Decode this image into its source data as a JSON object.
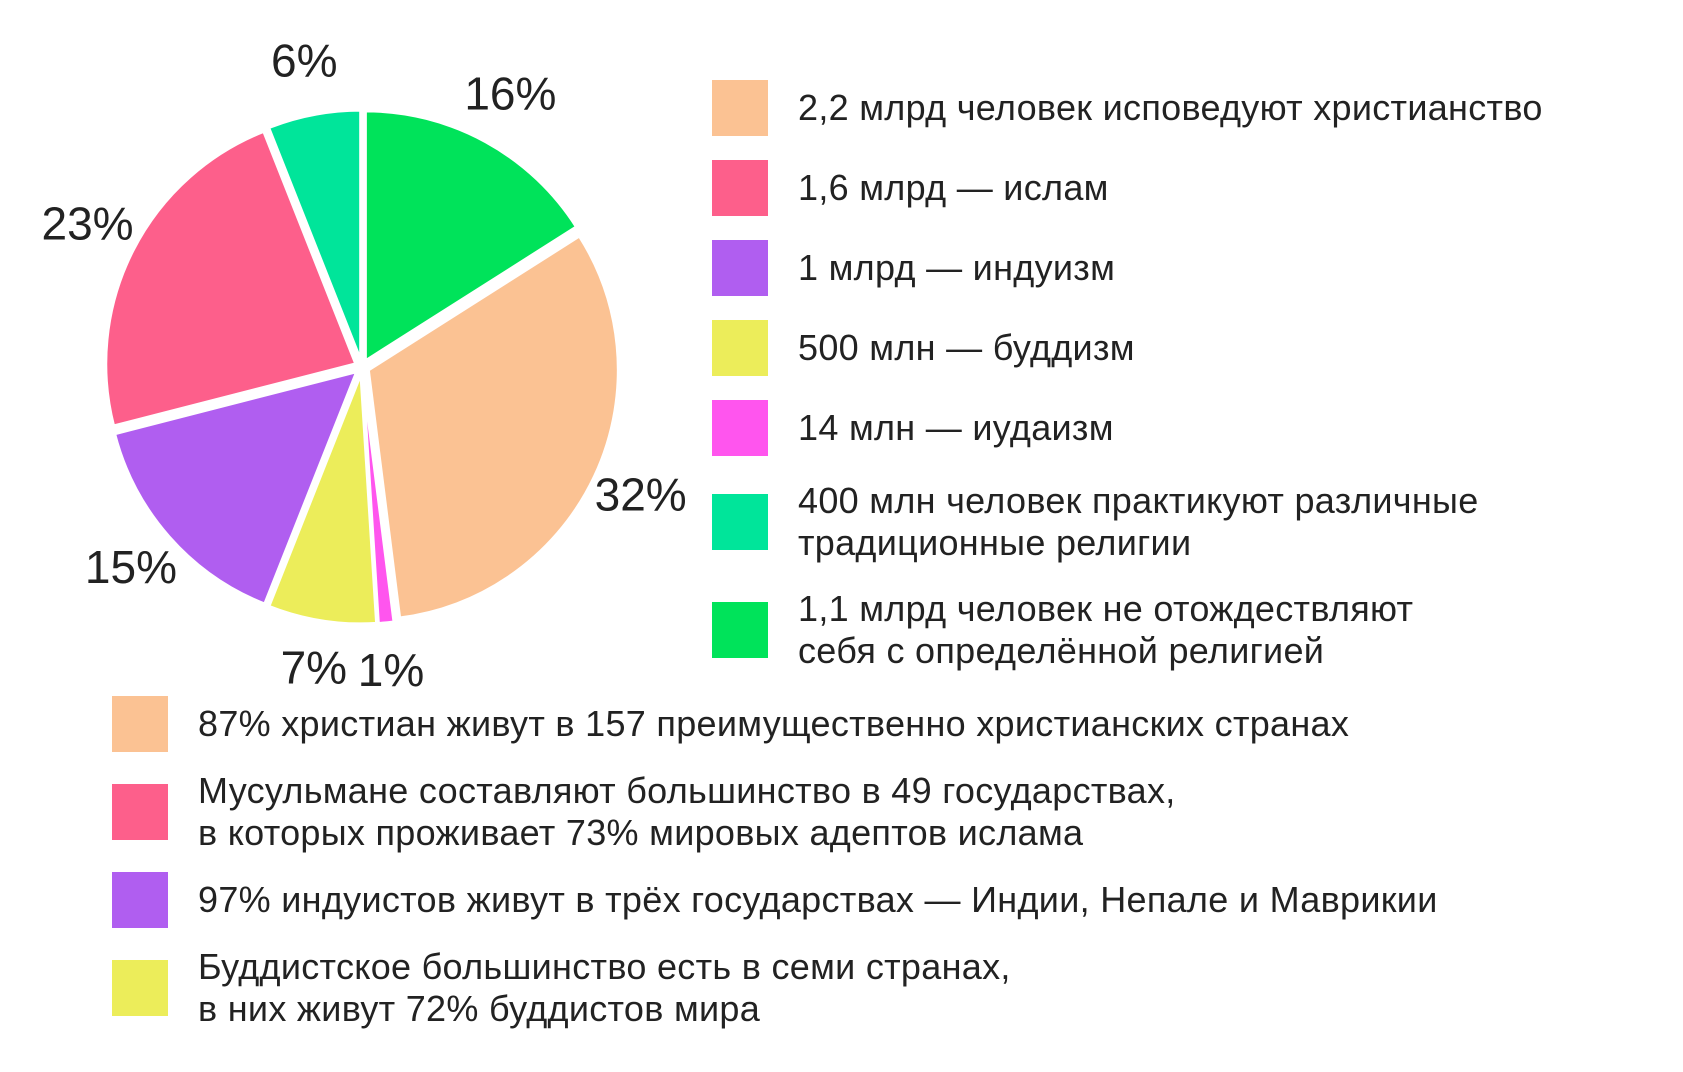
{
  "chart_data": {
    "type": "pie",
    "title": "",
    "slices": [
      {
        "label": "16%",
        "value": 16,
        "color": "#00e35a"
      },
      {
        "label": "32%",
        "value": 32,
        "color": "#fbc293"
      },
      {
        "label": "1%",
        "value": 1,
        "color": "#ff55ee"
      },
      {
        "label": "7%",
        "value": 7,
        "color": "#eced5a"
      },
      {
        "label": "15%",
        "value": 15,
        "color": "#b05ef0"
      },
      {
        "label": "23%",
        "value": 23,
        "color": "#fd5f8b"
      },
      {
        "label": "6%",
        "value": 6,
        "color": "#00e59a"
      }
    ]
  },
  "legend": [
    {
      "text": "2,2 млрд человек исповедуют христианство",
      "color": "#fbc293"
    },
    {
      "text": "1,6 млрд — ислам",
      "color": "#fd5f8b"
    },
    {
      "text": "1 млрд — индуизм",
      "color": "#b05ef0"
    },
    {
      "text": "500 млн — буддизм",
      "color": "#eced5a"
    },
    {
      "text": "14 млн — иудаизм",
      "color": "#ff55ee"
    },
    {
      "text": "400 млн человек практикуют различные\nтрадиционные религии",
      "color": "#00e59a"
    },
    {
      "text": "1,1 млрд человек не отождествляют\nсебя с определённой религией",
      "color": "#00e35a"
    }
  ],
  "notes": [
    {
      "text": "87% христиан живут в 157 преимущественно христианских странах",
      "color": "#fbc293"
    },
    {
      "text": "Мусульмане составляют большинство в 49 государствах,\nв которых проживает 73% мировых адептов ислама",
      "color": "#fd5f8b"
    },
    {
      "text": "97% индуистов живут в трёх государствах — Индии, Непале и Маврикии",
      "color": "#b05ef0"
    },
    {
      "text": "Буддистское большинство есть в семи странах,\nв них живут 72% буддистов мира",
      "color": "#eced5a"
    }
  ]
}
